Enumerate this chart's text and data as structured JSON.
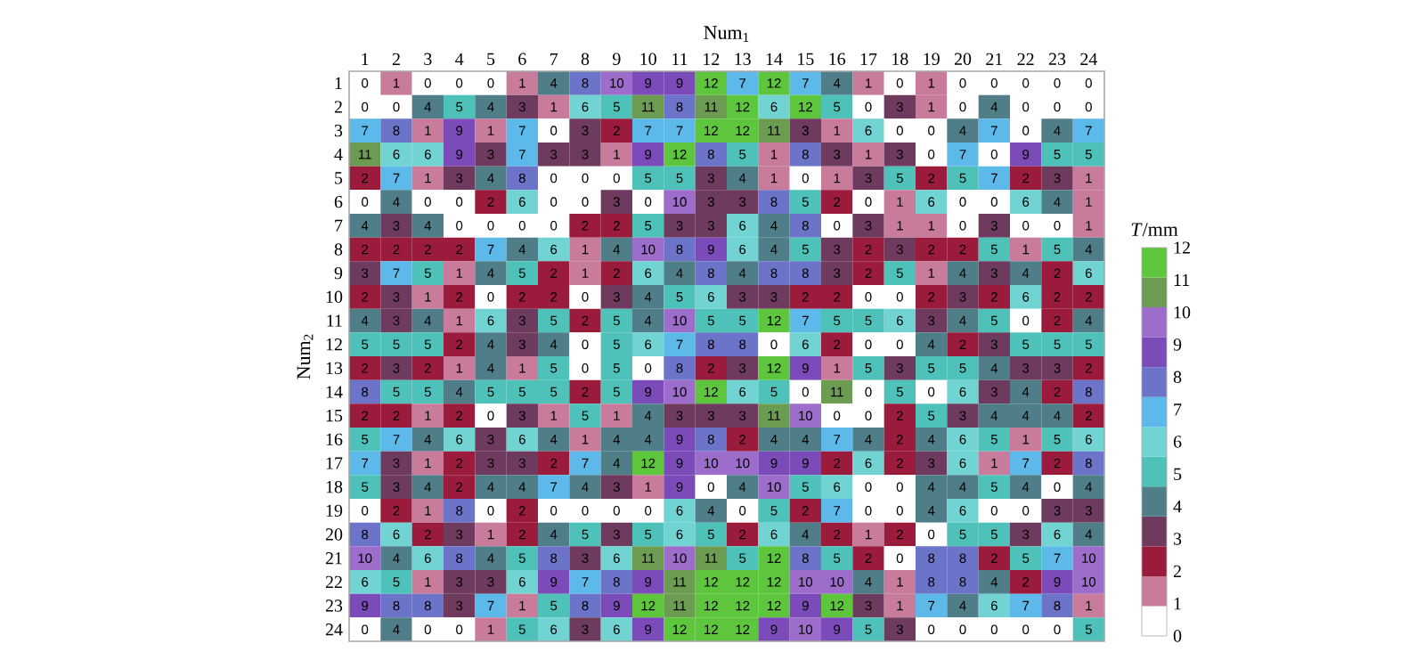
{
  "chart_data": {
    "type": "heatmap",
    "xlabel": "Num$_{1}$",
    "ylabel": "Num$_{2}$",
    "clabel": "*T*/mm",
    "categories": [
      "1",
      "2",
      "3",
      "4",
      "5",
      "6",
      "7",
      "8",
      "9",
      "10",
      "11",
      "12",
      "13",
      "14",
      "15",
      "16",
      "17",
      "18",
      "19",
      "20",
      "21",
      "22",
      "23",
      "24"
    ],
    "y_categories": [
      "1",
      "2",
      "3",
      "4",
      "5",
      "6",
      "7",
      "8",
      "9",
      "10",
      "11",
      "12",
      "13",
      "14",
      "15",
      "16",
      "17",
      "18",
      "19",
      "20",
      "21",
      "22",
      "23",
      "24"
    ],
    "cells": [
      [
        0,
        1,
        0,
        0,
        0,
        1,
        4,
        8,
        10,
        9,
        9,
        12,
        7,
        12,
        7,
        4,
        1,
        0,
        1,
        0,
        0,
        0,
        0,
        0
      ],
      [
        0,
        0,
        4,
        5,
        4,
        3,
        1,
        6,
        5,
        11,
        8,
        11,
        12,
        6,
        12,
        5,
        0,
        3,
        1,
        0,
        4,
        0,
        0,
        0
      ],
      [
        7,
        8,
        1,
        9,
        1,
        7,
        0,
        3,
        2,
        7,
        7,
        12,
        12,
        11,
        3,
        1,
        6,
        0,
        0,
        4,
        7,
        0,
        4,
        7
      ],
      [
        11,
        6,
        6,
        9,
        3,
        7,
        3,
        3,
        1,
        9,
        12,
        8,
        5,
        1,
        8,
        3,
        1,
        3,
        0,
        7,
        0,
        9,
        5,
        5
      ],
      [
        2,
        7,
        1,
        3,
        4,
        8,
        0,
        0,
        0,
        5,
        5,
        3,
        4,
        1,
        0,
        1,
        3,
        5,
        2,
        5,
        7,
        2,
        3,
        1
      ],
      [
        0,
        4,
        0,
        0,
        2,
        6,
        0,
        0,
        3,
        0,
        10,
        3,
        3,
        8,
        5,
        2,
        0,
        1,
        6,
        0,
        0,
        6,
        4,
        1
      ],
      [
        4,
        3,
        4,
        0,
        0,
        0,
        0,
        2,
        2,
        5,
        3,
        3,
        6,
        4,
        8,
        0,
        3,
        1,
        1,
        0,
        3,
        0,
        0,
        1
      ],
      [
        2,
        2,
        2,
        2,
        7,
        4,
        6,
        1,
        4,
        10,
        8,
        9,
        6,
        4,
        5,
        3,
        2,
        3,
        2,
        2,
        5,
        1,
        5,
        4
      ],
      [
        3,
        7,
        5,
        1,
        4,
        5,
        2,
        1,
        2,
        6,
        4,
        8,
        4,
        8,
        8,
        3,
        2,
        5,
        1,
        4,
        3,
        4,
        2,
        6
      ],
      [
        2,
        3,
        1,
        2,
        0,
        2,
        2,
        0,
        3,
        4,
        5,
        6,
        3,
        3,
        2,
        2,
        0,
        0,
        2,
        3,
        2,
        6,
        2,
        2
      ],
      [
        4,
        3,
        4,
        1,
        6,
        3,
        5,
        2,
        5,
        4,
        10,
        5,
        5,
        12,
        7,
        5,
        5,
        6,
        3,
        4,
        5,
        0,
        2,
        4
      ],
      [
        5,
        5,
        5,
        2,
        4,
        3,
        4,
        0,
        5,
        6,
        7,
        8,
        8,
        0,
        6,
        2,
        0,
        0,
        4,
        2,
        3,
        5,
        5,
        5
      ],
      [
        2,
        3,
        2,
        1,
        4,
        1,
        5,
        0,
        5,
        0,
        8,
        2,
        3,
        12,
        9,
        1,
        5,
        3,
        5,
        5,
        4,
        3,
        3,
        2
      ],
      [
        8,
        5,
        5,
        4,
        5,
        5,
        5,
        2,
        5,
        9,
        10,
        12,
        6,
        5,
        0,
        11,
        0,
        5,
        0,
        6,
        3,
        4,
        2,
        8
      ],
      [
        2,
        2,
        1,
        2,
        0,
        3,
        1,
        5,
        1,
        4,
        3,
        3,
        3,
        11,
        10,
        0,
        0,
        2,
        5,
        3,
        4,
        4,
        4,
        2
      ],
      [
        5,
        7,
        4,
        6,
        3,
        6,
        4,
        1,
        4,
        4,
        9,
        8,
        2,
        4,
        4,
        7,
        4,
        2,
        4,
        6,
        5,
        1,
        5,
        6
      ],
      [
        7,
        3,
        1,
        2,
        3,
        3,
        2,
        7,
        4,
        12,
        9,
        10,
        10,
        9,
        9,
        2,
        6,
        2,
        3,
        6,
        1,
        7,
        2,
        8
      ],
      [
        5,
        3,
        4,
        2,
        4,
        4,
        7,
        4,
        3,
        1,
        9,
        0,
        4,
        10,
        5,
        6,
        0,
        0,
        4,
        4,
        5,
        4,
        0,
        4
      ],
      [
        0,
        2,
        1,
        8,
        0,
        2,
        0,
        0,
        0,
        0,
        6,
        4,
        0,
        5,
        2,
        7,
        0,
        0,
        4,
        6,
        0,
        0,
        3,
        3
      ],
      [
        8,
        6,
        2,
        3,
        1,
        2,
        4,
        5,
        3,
        5,
        6,
        5,
        2,
        6,
        4,
        2,
        1,
        2,
        0,
        5,
        5,
        3,
        6,
        4
      ],
      [
        10,
        4,
        6,
        8,
        4,
        5,
        8,
        3,
        6,
        11,
        10,
        11,
        5,
        12,
        8,
        5,
        2,
        0,
        8,
        8,
        2,
        5,
        7,
        10
      ],
      [
        6,
        5,
        1,
        3,
        3,
        6,
        9,
        7,
        8,
        9,
        11,
        12,
        12,
        12,
        10,
        10,
        4,
        1,
        8,
        8,
        4,
        2,
        9,
        10
      ],
      [
        9,
        8,
        8,
        3,
        7,
        1,
        5,
        8,
        9,
        12,
        11,
        12,
        12,
        12,
        9,
        12,
        3,
        1,
        7,
        4,
        6,
        7,
        8,
        1
      ],
      [
        0,
        4,
        0,
        0,
        1,
        5,
        6,
        3,
        6,
        9,
        12,
        12,
        12,
        9,
        10,
        9,
        5,
        3,
        0,
        0,
        0,
        0,
        0,
        5
      ]
    ],
    "data_labels": true,
    "clim": [
      0,
      12
    ],
    "cticks": [
      0,
      1,
      2,
      3,
      4,
      5,
      6,
      7,
      8,
      9,
      10,
      11,
      12
    ]
  }
}
